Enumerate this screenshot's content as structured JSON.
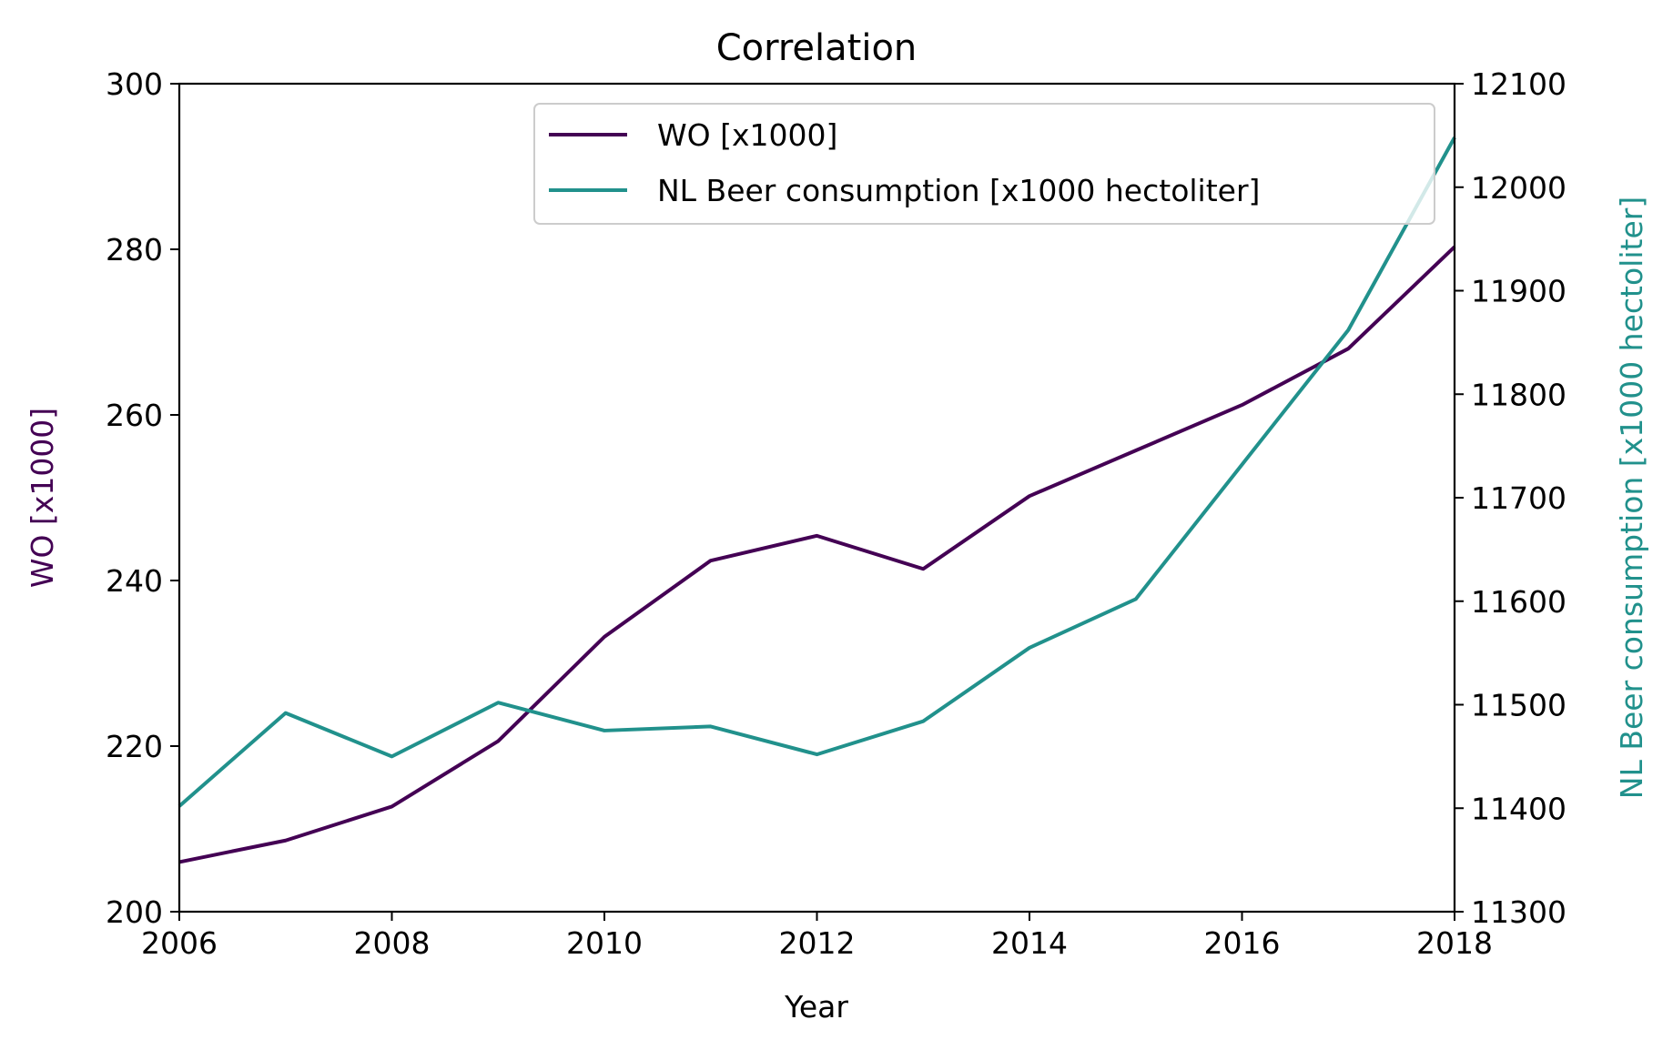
{
  "chart_data": {
    "type": "line",
    "title": "Correlation",
    "xlabel": "Year",
    "ylabel_left": "WO [x1000]",
    "ylabel_right": "NL Beer consumption [x1000 hectoliter]",
    "xlim": [
      2006,
      2018
    ],
    "ylim_left": [
      200,
      300
    ],
    "ylim_right": [
      11300,
      12100
    ],
    "xticks": [
      "2006",
      "2008",
      "2010",
      "2012",
      "2014",
      "2016",
      "2018"
    ],
    "yticks_left": [
      "200",
      "220",
      "240",
      "260",
      "280",
      "300"
    ],
    "yticks_right": [
      "11300",
      "11400",
      "11500",
      "11600",
      "11700",
      "11800",
      "11900",
      "12000",
      "12100"
    ],
    "x": [
      2006,
      2007,
      2008,
      2009,
      2010,
      2011,
      2012,
      2013,
      2014,
      2015,
      2016,
      2017,
      2018
    ],
    "series": [
      {
        "name": "WO [x1000]",
        "axis": "left",
        "color": "#440154",
        "values": [
          206.0,
          208.6,
          212.7,
          220.6,
          233.2,
          242.4,
          245.4,
          241.4,
          250.2,
          255.7,
          261.2,
          268.0,
          280.3
        ]
      },
      {
        "name": "NL Beer consumption [x1000 hectoliter]",
        "axis": "right",
        "color": "#21918c",
        "values": [
          11402,
          11492,
          11450,
          11502,
          11475,
          11479,
          11452,
          11484,
          11555,
          11602,
          11732,
          11862,
          12048
        ]
      }
    ],
    "legend_position": "top-right",
    "grid": false
  }
}
